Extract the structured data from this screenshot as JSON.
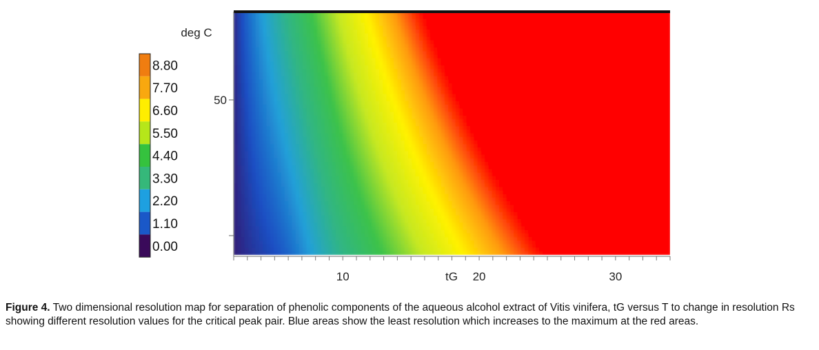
{
  "chart_data": {
    "type": "heatmap",
    "title": "",
    "xlabel": "tG",
    "ylabel": "deg C",
    "xlim": [
      2,
      34
    ],
    "x_ticks": [
      10,
      20,
      30
    ],
    "y_ticks": [
      50
    ],
    "colorbar": {
      "values": [
        8.8,
        7.7,
        6.6,
        5.5,
        4.4,
        3.3,
        2.2,
        1.1,
        0.0
      ],
      "labels": [
        "8.80",
        "7.70",
        "6.60",
        "5.50",
        "4.40",
        "3.30",
        "2.20",
        "1.10",
        "0.00"
      ],
      "colors": [
        "#f07d10",
        "#f9a80f",
        "#ffee00",
        "#b6e61a",
        "#35c23e",
        "#35b87a",
        "#1ea0e0",
        "#1a58c8",
        "#3a0a5a"
      ]
    },
    "color_scale": [
      "#3a0a5a",
      "#1a4fc3",
      "#23a0d8",
      "#30b585",
      "#3cc24a",
      "#c6e822",
      "#fff200",
      "#ff9a10",
      "#ff0000"
    ],
    "region_notes": [
      "low resolution (blue) at small tG",
      "high resolution (red) at large tG and high T"
    ]
  },
  "caption": {
    "label": "Figure 4.",
    "text": " Two dimensional resolution map for separation of phenolic components of the aqueous alcohol extract of Vitis vinifera, tG versus T to change in resolution Rs showing different resolution values for the critical peak pair. Blue areas show the least resolution which increases to the maximum at the red areas."
  }
}
